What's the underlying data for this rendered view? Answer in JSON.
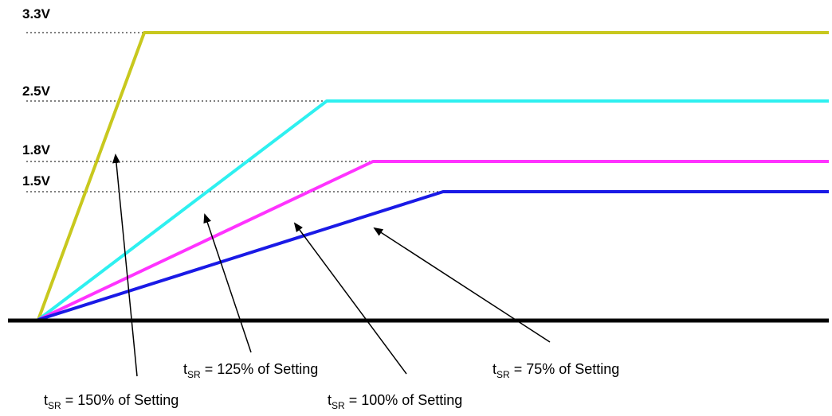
{
  "voltage_labels": {
    "v33": "3.3V",
    "v25": "2.5V",
    "v18": "1.8V",
    "v15": "1.5V"
  },
  "tsr": {
    "prefix": "t",
    "sub": "SR",
    "label_150": " = 150% of Setting",
    "label_125": " = 125% of Setting",
    "label_100": " = 100% of Setting",
    "label_75": " = 75% of Setting"
  },
  "colors": {
    "rail_3v3": "#c8c81e",
    "rail_2v5": "#2ef0f0",
    "rail_1v8": "#ff33ff",
    "rail_1v5": "#1a1ae6",
    "ground": "#000000"
  }
}
